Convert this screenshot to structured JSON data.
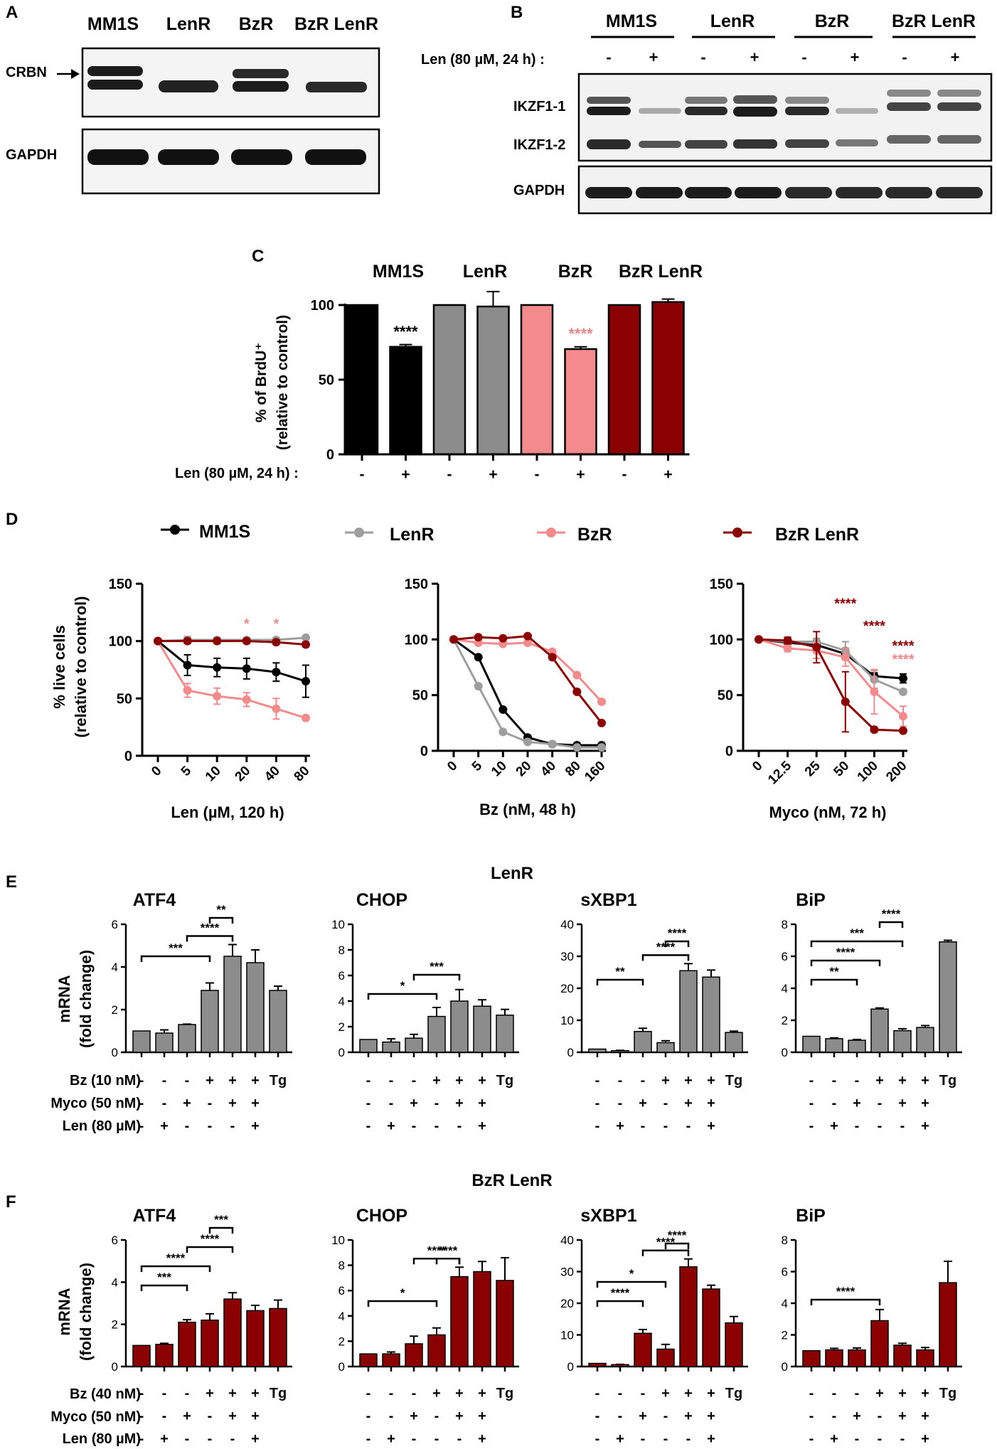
{
  "panel_letters": [
    "A",
    "B",
    "C",
    "D",
    "E",
    "F"
  ],
  "blot_a": {
    "lanes": [
      "MM1S",
      "LenR",
      "BzR",
      "BzR LenR"
    ],
    "labels": [
      "CRBN",
      "GAPDH"
    ]
  },
  "blot_b": {
    "groups": [
      "MM1S",
      "LenR",
      "BzR",
      "BzR LenR"
    ],
    "treatment_label": "Len (80 µM, 24 h) :",
    "treatment_signs": [
      "-",
      "+",
      "-",
      "+",
      "-",
      "+",
      "-",
      "+"
    ],
    "labels": [
      "IKZF1-1",
      "IKZF1-2",
      "GAPDH"
    ]
  },
  "panel_c": {
    "ylabel": [
      "% of BrdU⁺",
      "(relative to control)"
    ],
    "group_labels": [
      "MM1S",
      "LenR",
      "BzR",
      "BzR LenR"
    ],
    "treatment_label": "Len (80 µM, 24 h) :",
    "signs": [
      "-",
      "+",
      "-",
      "+",
      "-",
      "+",
      "-",
      "+"
    ],
    "stars": [
      {
        "bar": 1,
        "text": "****",
        "color": "#000000"
      },
      {
        "bar": 5,
        "text": "****",
        "color": "#e8878b"
      }
    ]
  },
  "panel_d": {
    "legend": [
      "MM1S",
      "LenR",
      "BzR",
      "BzR LenR"
    ],
    "ylabel": [
      "% live cells",
      "(relative to control)"
    ],
    "subplots": [
      {
        "xlabel": "Len (µM, 120 h)",
        "ticks": [
          "0",
          "5",
          "10",
          "20",
          "40",
          "80"
        ],
        "annotations": [
          {
            "x": 3,
            "y": 111,
            "text": "*",
            "color": "#f38b8d"
          },
          {
            "x": 4,
            "y": 111,
            "text": "*",
            "color": "#f38b8d"
          }
        ]
      },
      {
        "xlabel": "Bz (nM, 48 h)",
        "ticks": [
          "0",
          "5",
          "10",
          "20",
          "40",
          "80",
          "160"
        ],
        "annotations": []
      },
      {
        "xlabel": "Myco (nM, 72 h)",
        "ticks": [
          "0",
          "12.5",
          "25",
          "50",
          "100",
          "200"
        ],
        "annotations": [
          {
            "x": 3,
            "y": 128,
            "text": "****",
            "color": "#8b0000"
          },
          {
            "x": 4,
            "y": 108,
            "text": "****",
            "color": "#8b0000"
          },
          {
            "x": 5,
            "y": 90,
            "text": "****",
            "color": "#8b0000"
          },
          {
            "x": 5,
            "y": 78,
            "text": "****",
            "color": "#f38b8d"
          }
        ]
      }
    ]
  },
  "panel_e": {
    "title": "LenR",
    "ylabel": [
      "mRNA",
      "(fold change)"
    ],
    "row_labels": [
      "Bz (10 nM)",
      "Myco (50 nM)",
      "Len (80 µM)"
    ],
    "signs": [
      [
        "-",
        "-",
        "-",
        "+",
        "+",
        "+",
        "Tg"
      ],
      [
        "-",
        "-",
        "+",
        "-",
        "+",
        "+",
        ""
      ],
      [
        "-",
        "+",
        "-",
        "-",
        "-",
        "+",
        ""
      ]
    ]
  },
  "panel_f": {
    "title": "BzR LenR",
    "ylabel": [
      "mRNA",
      "(fold change)"
    ],
    "row_labels": [
      "Bz (40 nM)",
      "Myco (50 nM)",
      "Len (80 µM)"
    ],
    "signs": [
      [
        "-",
        "-",
        "-",
        "+",
        "+",
        "+",
        "Tg"
      ],
      [
        "-",
        "-",
        "+",
        "-",
        "+",
        "+",
        ""
      ],
      [
        "-",
        "+",
        "-",
        "-",
        "-",
        "+",
        ""
      ]
    ]
  },
  "chart_data": [
    {
      "id": "C",
      "type": "bar",
      "title": "",
      "xlabel": "",
      "ylabel": "% of BrdU+ (relative to control)",
      "categories": [
        "MM1S -",
        "MM1S +",
        "LenR -",
        "LenR +",
        "BzR -",
        "BzR +",
        "BzR LenR -",
        "BzR LenR +"
      ],
      "values": [
        100,
        72,
        100,
        99,
        100,
        70.5,
        100,
        102
      ],
      "errors": [
        0,
        1.5,
        0,
        10,
        0,
        1.5,
        0,
        2
      ],
      "colors": [
        "#000000",
        "#000000",
        "#8c8c8c",
        "#8c8c8c",
        "#f38b8d",
        "#f38b8d",
        "#8b0000",
        "#8b0000"
      ],
      "ylim": [
        0,
        100
      ],
      "yticks": [
        0,
        50,
        100
      ]
    },
    {
      "id": "D1",
      "type": "line",
      "xlabel": "Len (µM, 120 h)",
      "ylabel": "% live cells (relative to control)",
      "x": [
        "0",
        "5",
        "10",
        "20",
        "40",
        "80"
      ],
      "ylim": [
        0,
        150
      ],
      "yticks": [
        0,
        50,
        100,
        150
      ],
      "series": [
        {
          "name": "MM1S",
          "color": "#000000",
          "values": [
            100,
            79,
            77,
            76,
            73,
            65
          ],
          "errors": [
            0,
            9,
            8,
            9,
            8,
            14
          ]
        },
        {
          "name": "LenR",
          "color": "#9e9e9e",
          "values": [
            100,
            101,
            101,
            101,
            101,
            103
          ],
          "errors": [
            0,
            3,
            2,
            2,
            2,
            1
          ]
        },
        {
          "name": "BzR",
          "color": "#f38b8d",
          "values": [
            100,
            57,
            52,
            49,
            41,
            33
          ],
          "errors": [
            0,
            6,
            7,
            6,
            9,
            2
          ]
        },
        {
          "name": "BzR LenR",
          "color": "#8b0000",
          "values": [
            100,
            100,
            100,
            100,
            99,
            97
          ],
          "errors": [
            0,
            2,
            2,
            2,
            2,
            2
          ]
        }
      ]
    },
    {
      "id": "D2",
      "type": "line",
      "xlabel": "Bz (nM, 48 h)",
      "ylabel": "",
      "x": [
        "0",
        "5",
        "10",
        "20",
        "40",
        "80",
        "160"
      ],
      "ylim": [
        0,
        150
      ],
      "yticks": [
        0,
        50,
        100,
        150
      ],
      "series": [
        {
          "name": "MM1S",
          "color": "#000000",
          "values": [
            100,
            84,
            37,
            12,
            6,
            5,
            5
          ],
          "errors": [
            0,
            0,
            0,
            0,
            0,
            0,
            0
          ]
        },
        {
          "name": "LenR",
          "color": "#9e9e9e",
          "values": [
            100,
            58,
            17,
            8,
            6,
            3,
            3
          ],
          "errors": [
            0,
            0,
            0,
            0,
            0,
            0,
            0
          ]
        },
        {
          "name": "BzR",
          "color": "#f38b8d",
          "values": [
            100,
            97,
            96,
            97,
            89,
            68,
            44
          ],
          "errors": [
            0,
            0,
            0,
            0,
            0,
            0,
            0
          ]
        },
        {
          "name": "BzR LenR",
          "color": "#8b0000",
          "values": [
            100,
            102,
            101,
            103,
            84,
            53,
            25
          ],
          "errors": [
            0,
            0,
            0,
            0,
            0,
            0,
            0
          ]
        }
      ]
    },
    {
      "id": "D3",
      "type": "line",
      "xlabel": "Myco (nM, 72 h)",
      "ylabel": "",
      "x": [
        "0",
        "12.5",
        "25",
        "50",
        "100",
        "200"
      ],
      "ylim": [
        0,
        150
      ],
      "yticks": [
        0,
        50,
        100,
        150
      ],
      "series": [
        {
          "name": "MM1S",
          "color": "#000000",
          "values": [
            100,
            97,
            95,
            87,
            67,
            65
          ],
          "errors": [
            0,
            2,
            3,
            5,
            3,
            4
          ]
        },
        {
          "name": "LenR",
          "color": "#9e9e9e",
          "values": [
            100,
            98,
            98,
            90,
            64,
            53
          ],
          "errors": [
            0,
            3,
            3,
            8,
            8,
            2
          ]
        },
        {
          "name": "BzR",
          "color": "#f38b8d",
          "values": [
            100,
            92,
            90,
            84,
            53,
            31
          ],
          "errors": [
            0,
            3,
            7,
            8,
            20,
            9
          ]
        },
        {
          "name": "BzR LenR",
          "color": "#8b0000",
          "values": [
            100,
            99,
            93,
            44,
            19,
            18
          ],
          "errors": [
            0,
            3,
            14,
            27,
            2,
            1
          ]
        }
      ]
    },
    {
      "id": "E1",
      "type": "bar",
      "title": "ATF4",
      "color": "#8c8c8c",
      "categories": [
        "1",
        "2",
        "3",
        "4",
        "5",
        "6",
        "Tg"
      ],
      "values": [
        1,
        0.9,
        1.3,
        2.9,
        4.5,
        4.2,
        2.9
      ],
      "errors": [
        0,
        0.15,
        0.02,
        0.35,
        0.55,
        0.6,
        0.2
      ],
      "ylim": [
        0,
        6
      ],
      "yticks": [
        0,
        2,
        4,
        6
      ],
      "brackets": [
        {
          "a": 0,
          "b": 3,
          "text": "***"
        },
        {
          "a": 2,
          "b": 4,
          "text": "****"
        },
        {
          "a": 3,
          "b": 4,
          "text": "**"
        }
      ]
    },
    {
      "id": "E2",
      "type": "bar",
      "title": "CHOP",
      "color": "#8c8c8c",
      "categories": [
        "1",
        "2",
        "3",
        "4",
        "5",
        "6",
        "Tg"
      ],
      "values": [
        1,
        0.8,
        1.1,
        2.8,
        4.0,
        3.6,
        2.9
      ],
      "errors": [
        0,
        0.25,
        0.3,
        0.7,
        0.9,
        0.5,
        0.45
      ],
      "ylim": [
        0,
        10
      ],
      "yticks": [
        0,
        2,
        4,
        6,
        8,
        10
      ],
      "brackets": [
        {
          "a": 0,
          "b": 3,
          "text": "*"
        },
        {
          "a": 2,
          "b": 4,
          "text": "***"
        }
      ]
    },
    {
      "id": "E3",
      "type": "bar",
      "title": "sXBP1",
      "color": "#8c8c8c",
      "categories": [
        "1",
        "2",
        "3",
        "4",
        "5",
        "6",
        "Tg"
      ],
      "values": [
        1,
        0.5,
        6.5,
        3.0,
        25.5,
        23.5,
        6.2
      ],
      "errors": [
        0,
        0.1,
        1.0,
        0.6,
        2.2,
        2.2,
        0.4
      ],
      "ylim": [
        0,
        40
      ],
      "yticks": [
        0,
        10,
        20,
        30,
        40
      ],
      "brackets": [
        {
          "a": 0,
          "b": 2,
          "text": "**"
        },
        {
          "a": 2,
          "b": 4,
          "text": "****"
        },
        {
          "a": 3,
          "b": 4,
          "text": "****"
        }
      ]
    },
    {
      "id": "E4",
      "type": "bar",
      "title": "BiP",
      "color": "#8c8c8c",
      "categories": [
        "1",
        "2",
        "3",
        "4",
        "5",
        "6",
        "Tg"
      ],
      "values": [
        1,
        0.85,
        0.75,
        2.7,
        1.35,
        1.55,
        6.9
      ],
      "errors": [
        0,
        0.05,
        0.05,
        0.07,
        0.12,
        0.12,
        0.1
      ],
      "ylim": [
        0,
        8
      ],
      "yticks": [
        0,
        2,
        4,
        6,
        8
      ],
      "brackets": [
        {
          "a": 0,
          "b": 2,
          "text": "**"
        },
        {
          "a": 0,
          "b": 3,
          "text": "****"
        },
        {
          "a": 0,
          "b": 4,
          "text": "***"
        },
        {
          "a": 3,
          "b": 4,
          "text": "****"
        }
      ]
    },
    {
      "id": "F1",
      "type": "bar",
      "title": "ATF4",
      "color": "#8b0000",
      "categories": [
        "1",
        "2",
        "3",
        "4",
        "5",
        "6",
        "Tg"
      ],
      "values": [
        1,
        1.05,
        2.1,
        2.2,
        3.2,
        2.65,
        2.75
      ],
      "errors": [
        0,
        0.05,
        0.12,
        0.3,
        0.3,
        0.25,
        0.4
      ],
      "ylim": [
        0,
        6
      ],
      "yticks": [
        0,
        2,
        4,
        6
      ],
      "brackets": [
        {
          "a": 0,
          "b": 2,
          "text": "***"
        },
        {
          "a": 0,
          "b": 3,
          "text": "****"
        },
        {
          "a": 2,
          "b": 4,
          "text": "****"
        },
        {
          "a": 3,
          "b": 4,
          "text": "***"
        }
      ]
    },
    {
      "id": "F2",
      "type": "bar",
      "title": "CHOP",
      "color": "#8b0000",
      "categories": [
        "1",
        "2",
        "3",
        "4",
        "5",
        "6",
        "Tg"
      ],
      "values": [
        1,
        1.0,
        1.8,
        2.5,
        7.1,
        7.5,
        6.8
      ],
      "errors": [
        0,
        0.15,
        0.6,
        0.55,
        0.75,
        0.8,
        1.8
      ],
      "ylim": [
        0,
        10
      ],
      "yticks": [
        0,
        2,
        4,
        6,
        8,
        10
      ],
      "brackets": [
        {
          "a": 0,
          "b": 3,
          "text": "*"
        },
        {
          "a": 2,
          "b": 4,
          "text": "****"
        },
        {
          "a": 3,
          "b": 4,
          "text": "****"
        }
      ]
    },
    {
      "id": "F3",
      "type": "bar",
      "title": "sXBP1",
      "color": "#8b0000",
      "categories": [
        "1",
        "2",
        "3",
        "4",
        "5",
        "6",
        "Tg"
      ],
      "values": [
        1,
        0.6,
        10.5,
        5.5,
        31.5,
        24.5,
        13.8
      ],
      "errors": [
        0,
        0.1,
        1.2,
        1.5,
        2.5,
        1.2,
        2.0
      ],
      "ylim": [
        0,
        40
      ],
      "yticks": [
        0,
        10,
        20,
        30,
        40
      ],
      "brackets": [
        {
          "a": 0,
          "b": 2,
          "text": "****"
        },
        {
          "a": 0,
          "b": 3,
          "text": "*"
        },
        {
          "a": 2,
          "b": 4,
          "text": "****"
        },
        {
          "a": 3,
          "b": 4,
          "text": "****"
        }
      ]
    },
    {
      "id": "F4",
      "type": "bar",
      "title": "BiP",
      "color": "#8b0000",
      "categories": [
        "1",
        "2",
        "3",
        "4",
        "5",
        "6",
        "Tg"
      ],
      "values": [
        1,
        1.05,
        1.05,
        2.9,
        1.35,
        1.05,
        5.3
      ],
      "errors": [
        0,
        0.1,
        0.12,
        0.7,
        0.12,
        0.15,
        1.35
      ],
      "ylim": [
        0,
        8
      ],
      "yticks": [
        0,
        2,
        4,
        6,
        8
      ],
      "brackets": [
        {
          "a": 0,
          "b": 3,
          "text": "****"
        }
      ]
    }
  ]
}
